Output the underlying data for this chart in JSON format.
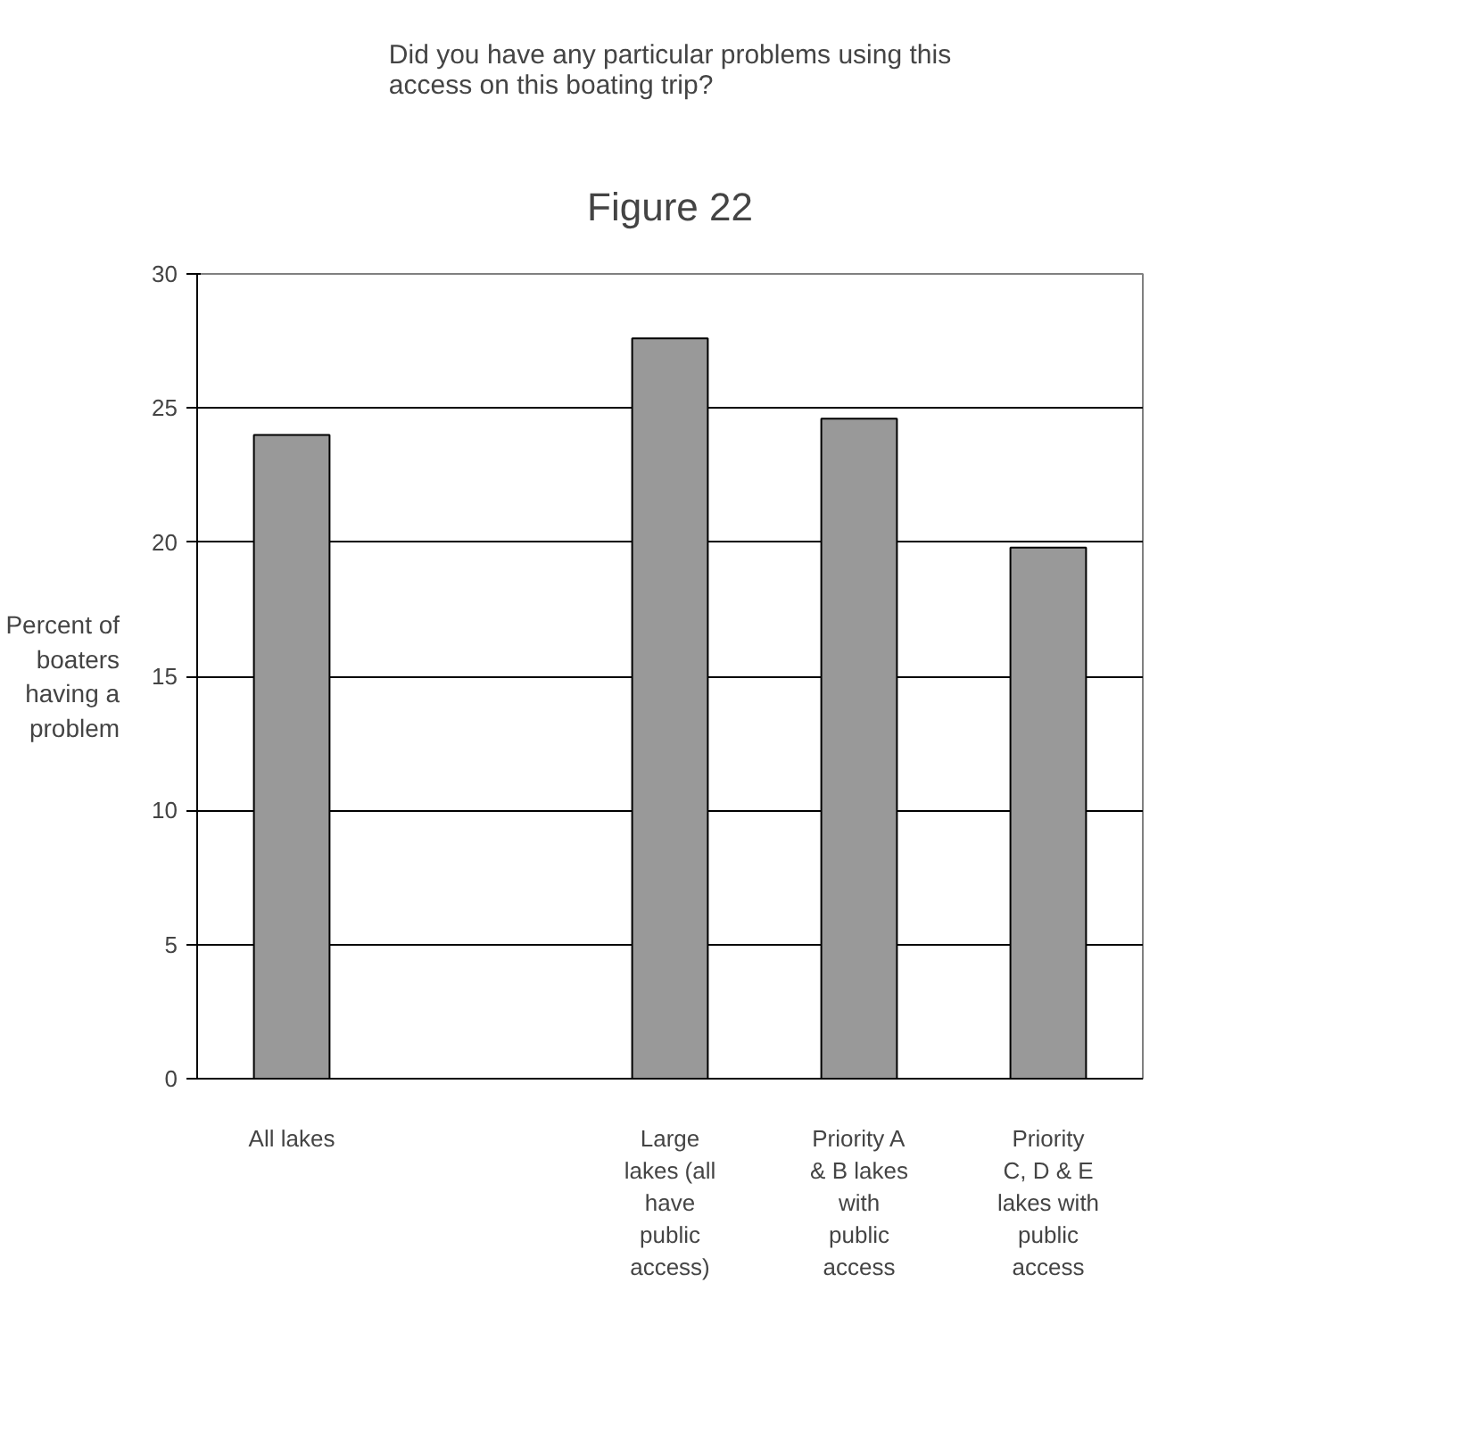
{
  "chart_data": {
    "type": "bar",
    "title": "Figure 22",
    "subtitle": "Did you have any particular problems using this access on this boating trip?",
    "ylabel": "Percent of boaters having a problem",
    "categories": [
      "All lakes",
      null,
      "Large lakes (all have public access)",
      "Priority A & B lakes with public access",
      "Priority C, D & E lakes with public access"
    ],
    "values": [
      24.0,
      null,
      27.6,
      24.6,
      19.8
    ],
    "color": "#999999",
    "ylim": [
      0,
      30
    ],
    "yticks": [
      0,
      5,
      10,
      15,
      20,
      25,
      30
    ],
    "grid": "y"
  }
}
